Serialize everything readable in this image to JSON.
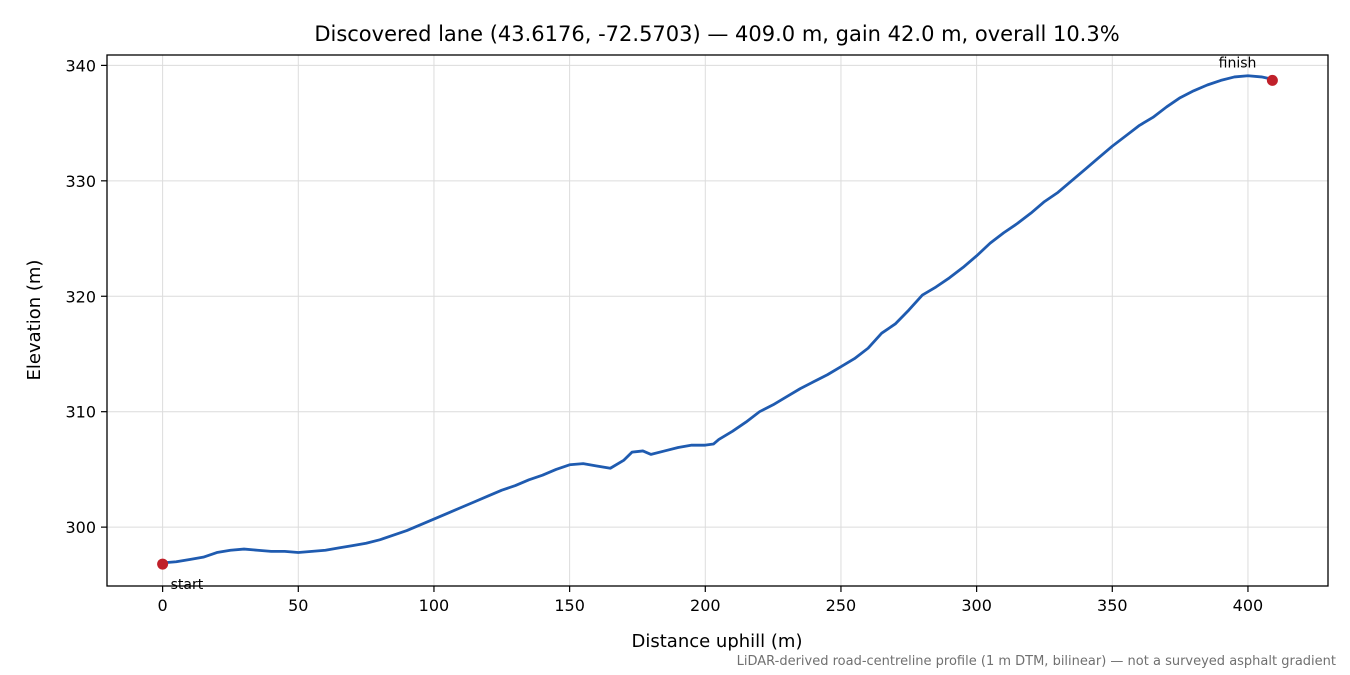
{
  "chart_data": {
    "type": "line",
    "title": "Discovered lane (43.6176, -72.5703) — 409.0 m, gain 42.0 m, overall 10.3%",
    "xlabel": "Distance uphill (m)",
    "ylabel": "Elevation (m)",
    "xlim": [
      -20.5,
      429.5
    ],
    "ylim": [
      294.9,
      340.9
    ],
    "xticks": [
      0,
      50,
      100,
      150,
      200,
      250,
      300,
      350,
      400
    ],
    "yticks": [
      300,
      310,
      320,
      330,
      340
    ],
    "grid": true,
    "series": [
      {
        "color": "#1f5bb0",
        "x": [
          0,
          5,
          10,
          15,
          20,
          25,
          30,
          35,
          40,
          45,
          50,
          55,
          60,
          65,
          70,
          75,
          80,
          85,
          90,
          95,
          100,
          105,
          110,
          115,
          120,
          125,
          130,
          135,
          140,
          145,
          150,
          155,
          160,
          165,
          170,
          173,
          177,
          180,
          185,
          190,
          195,
          200,
          203,
          205,
          210,
          215,
          220,
          225,
          230,
          235,
          240,
          245,
          250,
          255,
          260,
          265,
          270,
          275,
          280,
          285,
          290,
          295,
          300,
          305,
          310,
          315,
          320,
          325,
          330,
          335,
          340,
          345,
          350,
          355,
          360,
          365,
          370,
          375,
          380,
          385,
          390,
          395,
          400,
          405,
          409
        ],
        "y": [
          296.9,
          297.0,
          297.2,
          297.4,
          297.8,
          298.0,
          298.1,
          298.0,
          297.9,
          297.9,
          297.8,
          297.9,
          298.0,
          298.2,
          298.4,
          298.6,
          298.9,
          299.3,
          299.7,
          300.2,
          300.7,
          301.2,
          301.7,
          302.2,
          302.7,
          303.2,
          303.6,
          304.1,
          304.5,
          305.0,
          305.4,
          305.5,
          305.3,
          305.1,
          305.8,
          306.5,
          306.6,
          306.3,
          306.6,
          306.9,
          307.1,
          307.1,
          307.2,
          307.6,
          308.3,
          309.1,
          310.0,
          310.6,
          311.3,
          312.0,
          312.6,
          313.2,
          313.9,
          314.6,
          315.5,
          316.8,
          317.6,
          318.8,
          320.1,
          320.8,
          321.6,
          322.5,
          323.5,
          324.6,
          325.5,
          326.3,
          327.2,
          328.2,
          329.0,
          330.0,
          331.0,
          332.0,
          333.0,
          333.9,
          334.8,
          335.5,
          336.4,
          337.2,
          337.8,
          338.3,
          338.7,
          339.0,
          339.1,
          339.0,
          338.8
        ]
      }
    ],
    "endpoints": [
      {
        "label": "start",
        "x": 0,
        "y": 296.8,
        "color": "#c0202a"
      },
      {
        "label": "finish",
        "x": 409,
        "y": 338.7,
        "color": "#c0202a"
      }
    ]
  },
  "footnote": "LiDAR-derived road-centreline profile (1 m DTM, bilinear) — not a surveyed asphalt gradient"
}
